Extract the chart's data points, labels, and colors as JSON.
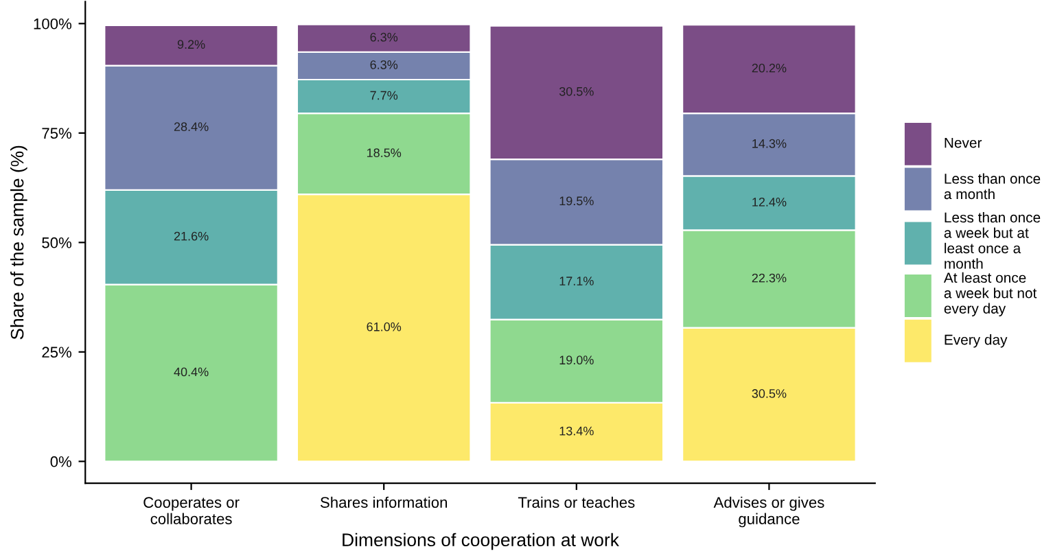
{
  "chart_data": {
    "type": "bar",
    "stacked": true,
    "xlabel": "Dimensions of cooperation at work",
    "ylabel": "Share of the sample (%)",
    "categories": [
      "Cooperates or\ncollaborates",
      "Shares information",
      "Trains or teaches",
      "Advises or gives\nguidance"
    ],
    "series": [
      {
        "name": "Every day",
        "color": "#fde96a",
        "values": [
          null,
          61.0,
          13.4,
          30.5
        ],
        "value_labels": [
          null,
          "61.0%",
          "13.4%",
          "30.5%"
        ]
      },
      {
        "name": "At least once\na week but not\nevery day",
        "color": "#8fd98f",
        "values": [
          40.4,
          18.5,
          19.0,
          22.3
        ],
        "value_labels": [
          "40.4%",
          "18.5%",
          "19.0%",
          "22.3%"
        ]
      },
      {
        "name": "Less than once\na week but at\nleast once a\nmonth",
        "color": "#60b1ad",
        "values": [
          21.6,
          7.7,
          17.1,
          12.4
        ],
        "value_labels": [
          "21.6%",
          "7.7%",
          "17.1%",
          "12.4%"
        ]
      },
      {
        "name": "Less than once\na month",
        "color": "#7582ad",
        "values": [
          28.4,
          6.3,
          19.5,
          14.3
        ],
        "value_labels": [
          "28.4%",
          "6.3%",
          "19.5%",
          "14.3%"
        ]
      },
      {
        "name": "Never",
        "color": "#7b4d86",
        "values": [
          9.2,
          6.3,
          30.5,
          20.2
        ],
        "value_labels": [
          "9.2%",
          "6.3%",
          "30.5%",
          "20.2%"
        ]
      }
    ],
    "ylim": [
      -5,
      105
    ],
    "yticks": [
      {
        "value": 0,
        "label": "0%"
      },
      {
        "value": 25,
        "label": "25%"
      },
      {
        "value": 50,
        "label": "50%"
      },
      {
        "value": 75,
        "label": "75%"
      },
      {
        "value": 100,
        "label": "100%"
      }
    ],
    "grid": false,
    "legend": "right"
  }
}
